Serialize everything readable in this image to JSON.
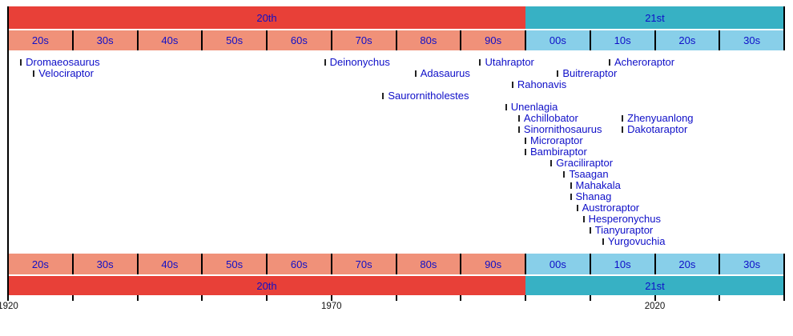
{
  "chart_data": {
    "type": "timeline",
    "x_range": [
      1920,
      2040
    ],
    "grid": false,
    "legend": false,
    "centuries": [
      {
        "label": "20th",
        "start": 1920,
        "end": 2000
      },
      {
        "label": "21st",
        "start": 2000,
        "end": 2040
      }
    ],
    "decades": [
      {
        "label": "20s",
        "start": 1920,
        "end": 1930,
        "era": "20th"
      },
      {
        "label": "30s",
        "start": 1930,
        "end": 1940,
        "era": "20th"
      },
      {
        "label": "40s",
        "start": 1940,
        "end": 1950,
        "era": "20th"
      },
      {
        "label": "50s",
        "start": 1950,
        "end": 1960,
        "era": "20th"
      },
      {
        "label": "60s",
        "start": 1960,
        "end": 1970,
        "era": "20th"
      },
      {
        "label": "70s",
        "start": 1970,
        "end": 1980,
        "era": "20th"
      },
      {
        "label": "80s",
        "start": 1980,
        "end": 1990,
        "era": "20th"
      },
      {
        "label": "90s",
        "start": 1990,
        "end": 2000,
        "era": "20th"
      },
      {
        "label": "00s",
        "start": 2000,
        "end": 2010,
        "era": "21st"
      },
      {
        "label": "10s",
        "start": 2010,
        "end": 2020,
        "era": "21st"
      },
      {
        "label": "20s",
        "start": 2020,
        "end": 2030,
        "era": "21st"
      },
      {
        "label": "30s",
        "start": 2030,
        "end": 2040,
        "era": "21st"
      }
    ],
    "taxa": [
      {
        "name": "Dromaeosaurus",
        "year": 1922,
        "row": 0
      },
      {
        "name": "Velociraptor",
        "year": 1924,
        "row": 1
      },
      {
        "name": "Deinonychus",
        "year": 1969,
        "row": 0
      },
      {
        "name": "Saurornitholestes",
        "year": 1978,
        "row": 3
      },
      {
        "name": "Adasaurus",
        "year": 1983,
        "row": 1
      },
      {
        "name": "Utahraptor",
        "year": 1993,
        "row": 0
      },
      {
        "name": "Unenlagia",
        "year": 1997,
        "row": 4
      },
      {
        "name": "Rahonavis",
        "year": 1998,
        "row": 2
      },
      {
        "name": "Achillobator",
        "year": 1999,
        "row": 5
      },
      {
        "name": "Sinornithosaurus",
        "year": 1999,
        "row": 6
      },
      {
        "name": "Microraptor",
        "year": 2000,
        "row": 7
      },
      {
        "name": "Bambiraptor",
        "year": 2000,
        "row": 8
      },
      {
        "name": "Graciliraptor",
        "year": 2004,
        "row": 9
      },
      {
        "name": "Buitreraptor",
        "year": 2005,
        "row": 1
      },
      {
        "name": "Tsaagan",
        "year": 2006,
        "row": 10
      },
      {
        "name": "Mahakala",
        "year": 2007,
        "row": 11
      },
      {
        "name": "Shanag",
        "year": 2007,
        "row": 12
      },
      {
        "name": "Austroraptor",
        "year": 2008,
        "row": 13
      },
      {
        "name": "Hesperonychus",
        "year": 2009,
        "row": 14
      },
      {
        "name": "Tianyuraptor",
        "year": 2010,
        "row": 15
      },
      {
        "name": "Yurgovuchia",
        "year": 2012,
        "row": 16
      },
      {
        "name": "Acheroraptor",
        "year": 2013,
        "row": 0
      },
      {
        "name": "Zhenyuanlong",
        "year": 2015,
        "row": 5
      },
      {
        "name": "Dakotaraptor",
        "year": 2015,
        "row": 6
      }
    ],
    "axis_label_years": [
      "1920",
      "1970",
      "2020"
    ],
    "colors": {
      "century_20th": "#e84038",
      "century_21st": "#37b1c4",
      "decade_20th": "#f09179",
      "decade_21st": "#88cfe9",
      "label_text": "#0f0fc8",
      "tick_marker": "#222222",
      "axis_text": "#111111"
    }
  }
}
